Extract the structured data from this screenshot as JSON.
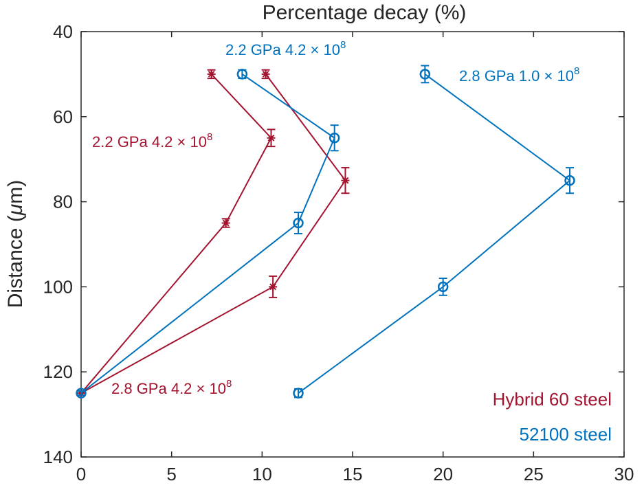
{
  "chart_data": {
    "type": "line",
    "title": "Percentage decay (%)",
    "xlabel": "",
    "ylabel": "Distance",
    "ylabel_unit_open": " (",
    "ylabel_unit_symbol": "μ",
    "ylabel_unit_rest": "m)",
    "xlim": [
      0,
      30
    ],
    "ylim": [
      40,
      140
    ],
    "y_reversed": true,
    "x_axis_position": "top-title-bottom-ticks",
    "xticks": [
      0,
      5,
      10,
      15,
      20,
      25,
      30
    ],
    "yticks": [
      40,
      60,
      80,
      100,
      120,
      140
    ],
    "grid": false,
    "legend_position": "bottom-right",
    "legend": [
      {
        "label": "Hybrid 60 steel",
        "color": "#a2142f"
      },
      {
        "label": "52100 steel",
        "color": "#0072bd"
      }
    ],
    "series": [
      {
        "group": "Hybrid 60 steel",
        "annotation": "2.2 GPa 4.2 × 10",
        "annotation_exp": "8",
        "color": "#a2142f",
        "marker": "asterisk",
        "points": [
          {
            "x": 7.2,
            "y": 50,
            "err": 1
          },
          {
            "x": 10.5,
            "y": 65,
            "err": 2
          },
          {
            "x": 8.0,
            "y": 85,
            "err": 1
          },
          {
            "x": 0,
            "y": 125,
            "err": 0.5
          }
        ]
      },
      {
        "group": "Hybrid 60 steel",
        "annotation": "2.8 GPa 4.2 × 10",
        "annotation_exp": "8",
        "color": "#a2142f",
        "marker": "asterisk",
        "points": [
          {
            "x": 10.2,
            "y": 50,
            "err": 1
          },
          {
            "x": 14.6,
            "y": 75,
            "err": 3
          },
          {
            "x": 10.6,
            "y": 100,
            "err": 2.5
          },
          {
            "x": 0,
            "y": 125,
            "err": 0.5
          }
        ]
      },
      {
        "group": "52100 steel",
        "annotation": "2.2 GPa 4.2 × 10",
        "annotation_exp": "8",
        "color": "#0072bd",
        "marker": "circle",
        "points": [
          {
            "x": 8.9,
            "y": 50,
            "err": 1
          },
          {
            "x": 14.0,
            "y": 65,
            "err": 3
          },
          {
            "x": 12.0,
            "y": 85,
            "err": 2.5
          },
          {
            "x": 0,
            "y": 125,
            "err": 0.5
          }
        ]
      },
      {
        "group": "52100 steel",
        "annotation": "2.8 GPa 1.0 × 10",
        "annotation_exp": "8",
        "color": "#0072bd",
        "marker": "circle",
        "points": [
          {
            "x": 19.0,
            "y": 50,
            "err": 2
          },
          {
            "x": 27.0,
            "y": 75,
            "err": 3
          },
          {
            "x": 20.0,
            "y": 100,
            "err": 2
          },
          {
            "x": 12.0,
            "y": 125,
            "err": 1
          }
        ]
      }
    ]
  }
}
